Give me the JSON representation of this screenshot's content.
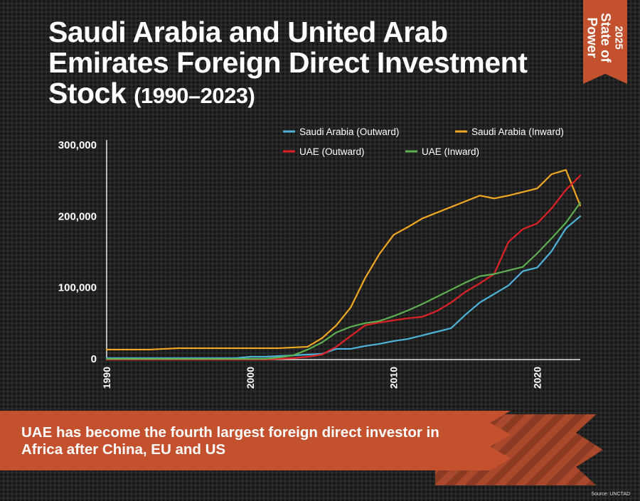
{
  "title": {
    "main": "Saudi Arabia and United Arab Emirates Foreign  Direct Investment Stock",
    "years": "(1990–2023)"
  },
  "badge": {
    "year": "2025",
    "name": "State of Power"
  },
  "banner": {
    "text": "UAE has become the fourth largest foreign direct investor in Africa after China, EU and US"
  },
  "source": "Source: UNCTAD",
  "colors": {
    "background": "#252525",
    "accent": "#c4512e",
    "saudi_outward": "#4fb3d9",
    "saudi_inward": "#f0a823",
    "uae_outward": "#e02127",
    "uae_inward": "#5db04f"
  },
  "chart_data": {
    "type": "line",
    "xlim": [
      1990,
      2023
    ],
    "ylim": [
      0,
      300000
    ],
    "x_ticks": [
      1990,
      2000,
      2010,
      2020
    ],
    "y_ticks": [
      0,
      100000,
      200000,
      300000
    ],
    "y_tick_labels": [
      "0",
      "100,000",
      "200,000",
      "300,000"
    ],
    "legend": "top-right",
    "grid": false,
    "x": [
      1990,
      1991,
      1992,
      1993,
      1994,
      1995,
      1996,
      1997,
      1998,
      1999,
      2000,
      2001,
      2002,
      2003,
      2004,
      2005,
      2006,
      2007,
      2008,
      2009,
      2010,
      2011,
      2012,
      2013,
      2014,
      2015,
      2016,
      2017,
      2018,
      2019,
      2020,
      2021,
      2022,
      2023
    ],
    "series": [
      {
        "name": "Saudi Arabia (Outward)",
        "color": "#4fb3d9",
        "values": [
          2000,
          2000,
          2000,
          2000,
          2000,
          2000,
          2000,
          2000,
          2000,
          2000,
          4000,
          4000,
          5000,
          6000,
          7000,
          8000,
          15000,
          15000,
          19000,
          22000,
          26000,
          29000,
          34000,
          39000,
          44000,
          63000,
          80000,
          92000,
          104000,
          124000,
          129000,
          152000,
          184000,
          201000
        ]
      },
      {
        "name": "Saudi Arabia (Inward)",
        "color": "#f0a823",
        "values": [
          14000,
          14000,
          14000,
          14000,
          15000,
          16000,
          16000,
          16000,
          16000,
          16000,
          16000,
          16000,
          16000,
          17000,
          18000,
          30000,
          48000,
          73000,
          114000,
          148000,
          175000,
          186000,
          198000,
          206000,
          214000,
          222000,
          230000,
          226000,
          230000,
          235000,
          240000,
          260000,
          266000,
          216000
        ]
      },
      {
        "name": "UAE (Outward)",
        "color": "#e02127",
        "values": [
          0,
          0,
          0,
          0,
          0,
          0,
          0,
          0,
          0,
          0,
          0,
          0,
          1000,
          2000,
          4000,
          7000,
          18000,
          33000,
          48000,
          52000,
          55000,
          58000,
          60000,
          68000,
          80000,
          95000,
          107000,
          120000,
          165000,
          183000,
          191000,
          212000,
          238000,
          258000
        ]
      },
      {
        "name": "UAE (Inward)",
        "color": "#5db04f",
        "values": [
          1000,
          1000,
          1000,
          1000,
          1000,
          1000,
          1000,
          1000,
          1000,
          1000,
          1000,
          1000,
          3000,
          6000,
          14000,
          24000,
          38000,
          46000,
          51000,
          54000,
          61000,
          69000,
          78000,
          88000,
          98000,
          108000,
          117000,
          120000,
          125000,
          130000,
          149000,
          170000,
          192000,
          220000
        ]
      }
    ]
  }
}
